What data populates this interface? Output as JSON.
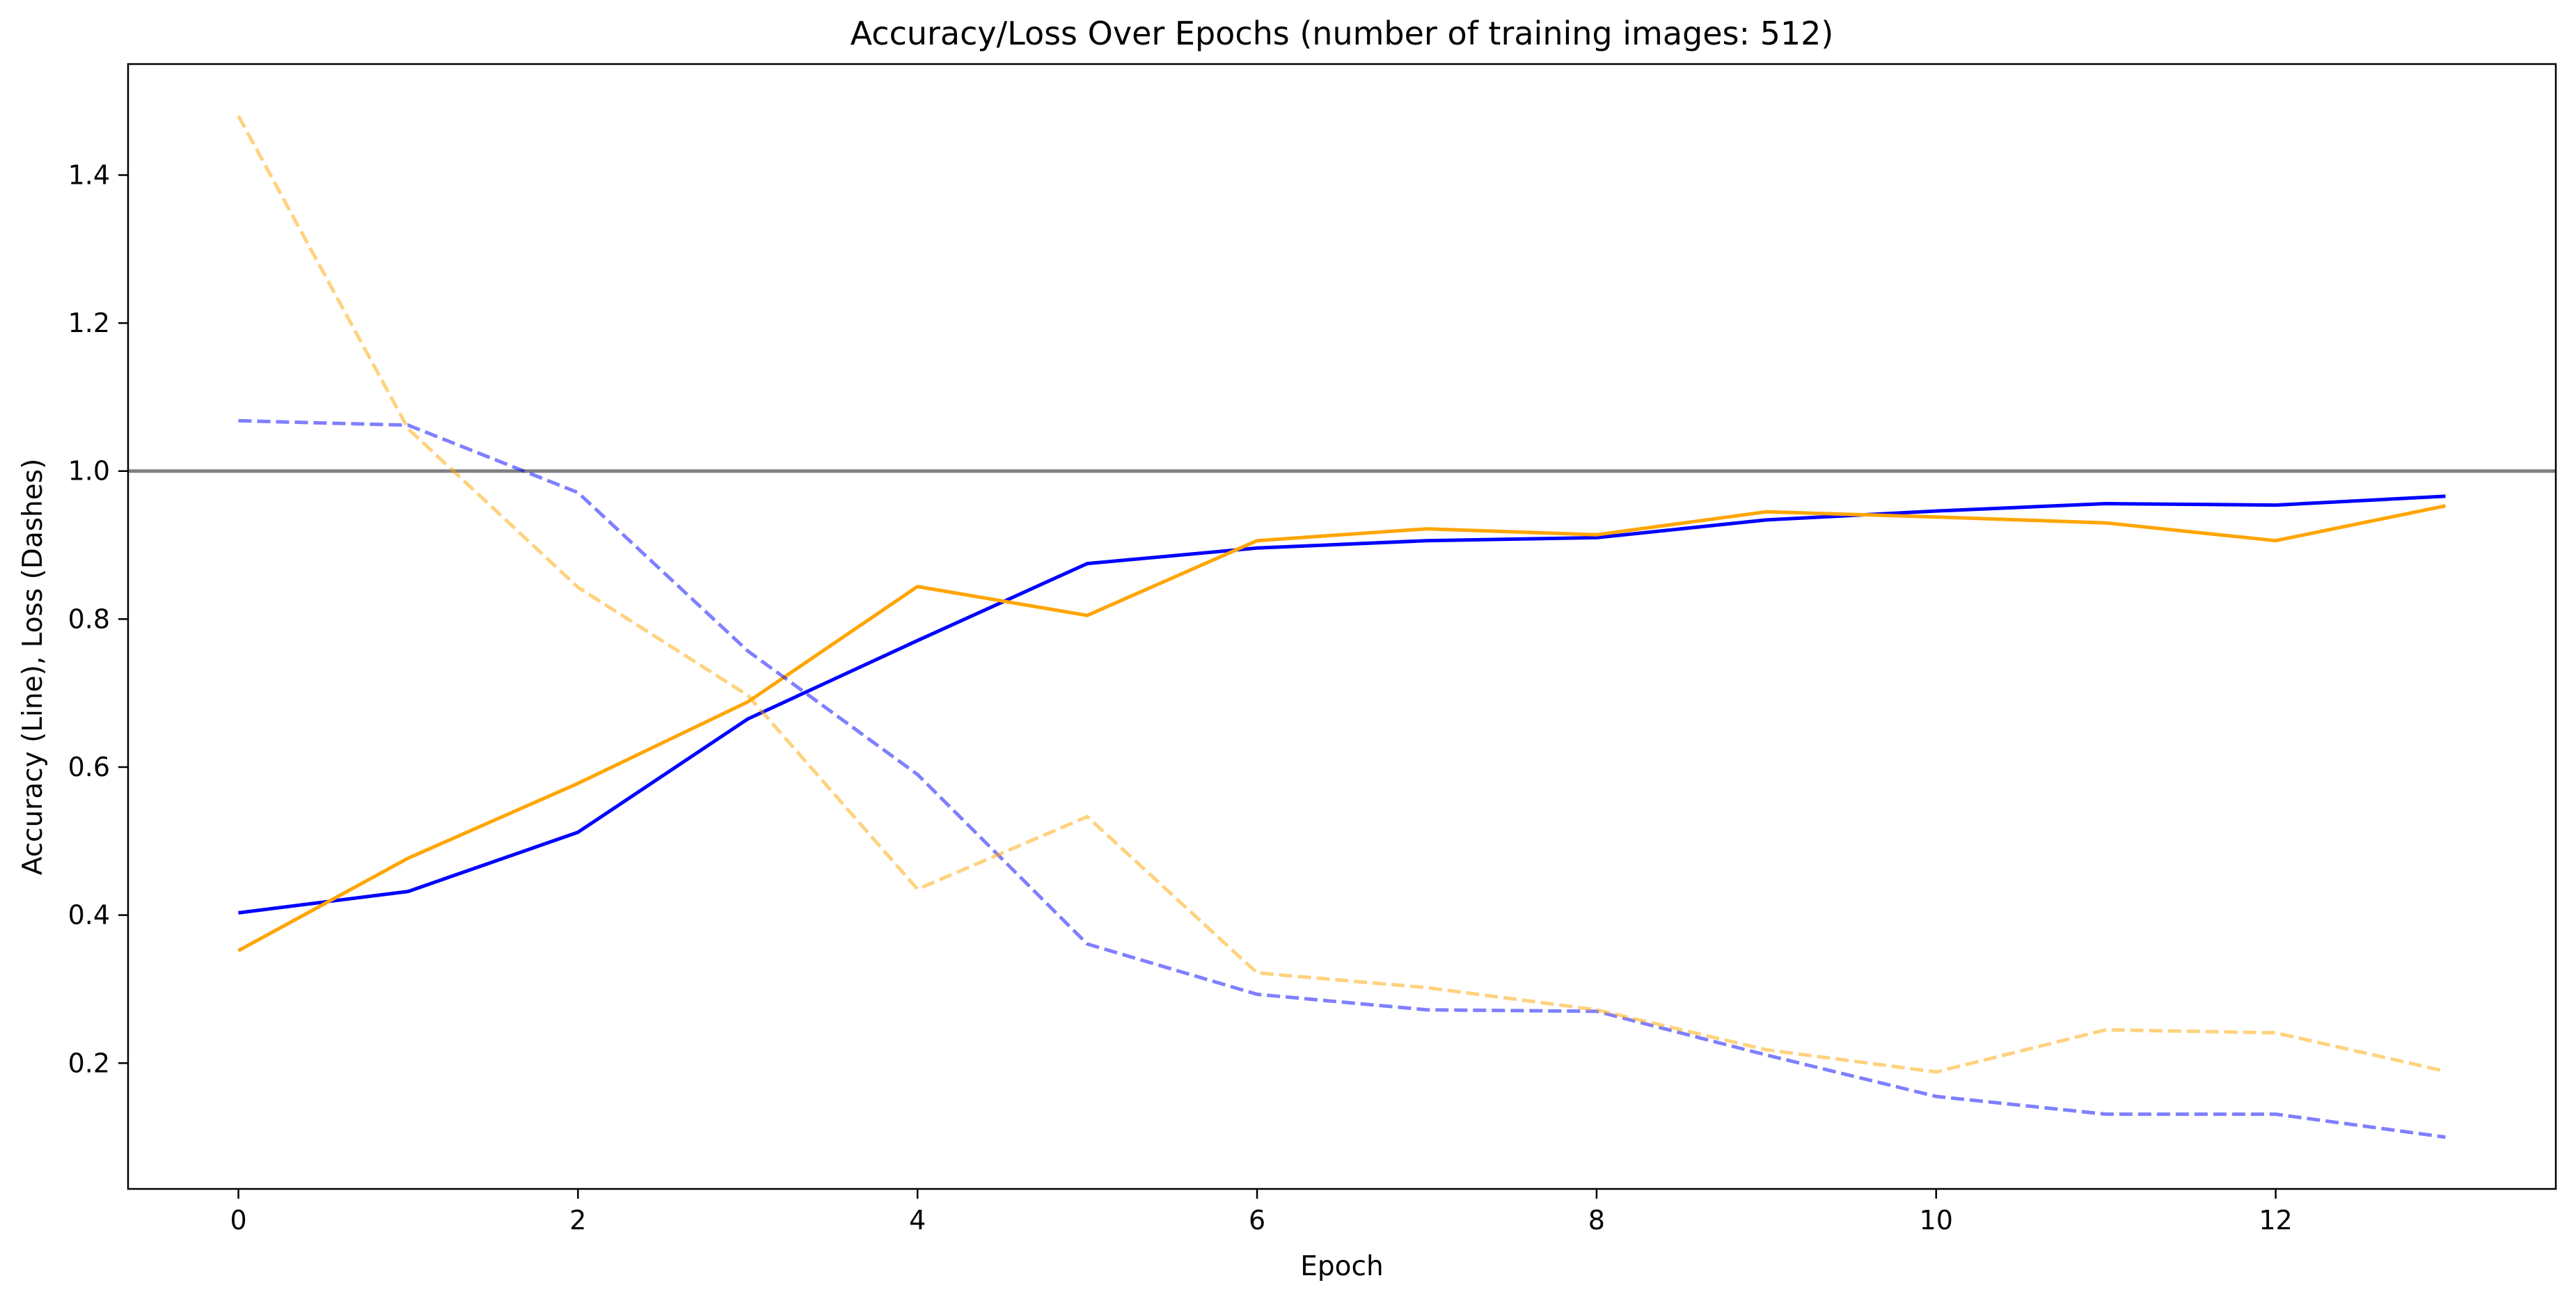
{
  "chart_data": {
    "type": "line",
    "title": "Accuracy/Loss Over Epochs (number of training images: 512)",
    "xlabel": "Epoch",
    "ylabel": "Accuracy (Line), Loss (Dashes)",
    "xlim": [
      -0.65,
      13.65
    ],
    "ylim": [
      0.03,
      1.55
    ],
    "xticks": [
      0,
      2,
      4,
      6,
      8,
      10,
      12
    ],
    "yticks": [
      0.2,
      0.4,
      0.6,
      0.8,
      1.0,
      1.2,
      1.4
    ],
    "xtick_labels": [
      "0",
      "2",
      "4",
      "6",
      "8",
      "10",
      "12"
    ],
    "ytick_labels": [
      "0.2",
      "0.4",
      "0.6",
      "0.8",
      "1.0",
      "1.2",
      "1.4"
    ],
    "grid": false,
    "reference_line": {
      "y": 1.0,
      "color": "#808080"
    },
    "x": [
      0,
      1,
      2,
      3,
      4,
      5,
      6,
      7,
      8,
      9,
      10,
      11,
      12,
      13
    ],
    "series": [
      {
        "color": "#0000ff",
        "style": "solid",
        "opacity": 1.0,
        "values": [
          0.403,
          0.432,
          0.512,
          0.665,
          0.771,
          0.875,
          0.896,
          0.906,
          0.91,
          0.934,
          0.946,
          0.956,
          0.954,
          0.966
        ]
      },
      {
        "color": "#ffa500",
        "style": "solid",
        "opacity": 1.0,
        "values": [
          0.352,
          0.477,
          0.578,
          0.688,
          0.844,
          0.805,
          0.906,
          0.922,
          0.914,
          0.945,
          0.938,
          0.93,
          0.906,
          0.953
        ]
      },
      {
        "color": "#0000ff",
        "style": "dashed",
        "opacity": 0.5,
        "values": [
          1.068,
          1.062,
          0.971,
          0.757,
          0.59,
          0.361,
          0.293,
          0.272,
          0.27,
          0.211,
          0.155,
          0.131,
          0.131,
          0.1
        ]
      },
      {
        "color": "#ffa500",
        "style": "dashed",
        "opacity": 0.5,
        "values": [
          1.48,
          1.057,
          0.843,
          0.697,
          0.435,
          0.533,
          0.322,
          0.302,
          0.272,
          0.218,
          0.188,
          0.245,
          0.241,
          0.189
        ]
      }
    ]
  }
}
